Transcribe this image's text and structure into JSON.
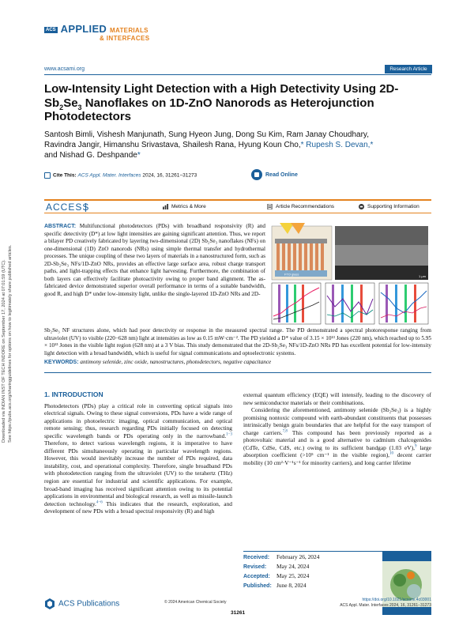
{
  "sidebar": {
    "line1": "Downloaded via INDIAN INST OF TECH INDORE on September 17, 2024 at 07:01:59 (UTC).",
    "line2": "See https://pubs.acs.org/sharingguidelines for options on how to legitimately share published articles."
  },
  "journal": {
    "acs": "ACS",
    "name1": "APPLIED",
    "name1b": "MATERIALS",
    "name2": "& INTERFACES",
    "url": "www.acsami.org",
    "badge": "Research Article"
  },
  "article": {
    "title_a": "Low-Intensity Light Detection with a High Detectivity Using 2D-",
    "title_b1": "Sb",
    "title_sub1": "2",
    "title_b2": "Se",
    "title_sub2": "3",
    "title_b3": " Nanoflakes on 1D-ZnO Nanorods as Heterojunction",
    "title_c": "Photodetectors",
    "authors_1": "Santosh Bimli, Vishesh Manjunath, Sung Hyeon Jung, Dong Su Kim, Ram Janay Choudhary,",
    "authors_2a": "Ravindra Jangir, Himanshu Srivastava, Shailesh Rana, Hyung Koun Cho,",
    "authors_2b": "* Rupesh S. Devan,",
    "authors_3a": "and Nishad G. Deshpande",
    "ast": "*",
    "cite_label": "Cite This:",
    "cite_journal": "ACS Appl. Mater. Interfaces",
    "cite_rest": " 2024, 16, 31261−31273",
    "read_online": "Read Online"
  },
  "access_bar": {
    "access": "ACCESS",
    "metrics": "Metrics & More",
    "recs": "Article Recommendations",
    "supp": "Supporting Information"
  },
  "abstract": {
    "label": "ABSTRACT:",
    "part1": "Multifunctional photodetectors (PDs) with broadband responsivity (R) and specific detectivity (D*) at low light intensities are gaining significant attention. Thus, we report a bilayer PD creatively fabricated by layering two-dimensional (2D) Sb₂Se₃ nanoflakes (NFs) on one-dimensional (1D) ZnO nanorods (NRs) using simple thermal transfer and hydrothermal processes. The unique coupling of these two layers of materials in a nanostructured form, such as 2D-Sb₂Se₃ NFs/1D-ZnO NRs, provides an effective large surface area, robust charge transport paths, and light-trapping effects that enhance light harvesting. Furthermore, the combination of both layers can effectively facilitate photoactivity owing to proper band alignment. The as-fabricated device demonstrated superior overall performance in terms of a suitable bandwidth, good R, and high D* under low-intensity light, unlike the single-layered 1D-ZnO NRs and 2D-",
    "part2": "Sb₂Se₃ NF structures alone, which had poor detectivity or response in the measured spectral range. The PD demonstrated a spectral photoresponse ranging from ultraviolet (UV) to visible (220−628 nm) light at intensities as low as 0.15 mW·cm⁻². The PD yielded a D* value of 3.15 × 10¹³ Jones (220 nm), which reached up to 5.95 × 10¹³ Jones in the visible light region (628 nm) at a 3 V bias. This study demonstrated that the 2D-Sb₂Se₃ NFs/1D-ZnO NRs PD has excellent potential for low-intensity light detection with a broad bandwidth, which is useful for signal communications and optoelectronic systems."
  },
  "keywords": {
    "label": "KEYWORDS:",
    "text": "antimony selenide, zinc oxide, nanostructures, photodetectors, negative capacitance"
  },
  "intro": {
    "heading": "1. INTRODUCTION",
    "col_left": "Photodetectors (PDs) play a critical role in converting optical signals into electrical signals. Owing to these signal conversions, PDs have a wide range of applications in photoelectric imaging, optical communication, and optical remote sensing; thus, research regarding PDs initially focused on detecting specific wavelength bands or PDs operating only in the narrowband.",
    "ref1": "1−3",
    "col_left_b": " Therefore, to detect various wavelength regions, it is imperative to have different PDs simultaneously operating in particular wavelength regions. However, this would inevitably increase the number of PDs required, data instability, cost, and operational complexity. Therefore, single broadband PDs with photodetection ranging from the ultraviolet (UV) to the terahertz (THz) region are essential for industrial and scientific applications. For example, broad-band imaging has received significant attention owing to its potential applications in environmental and biological research, as well as missile-launch detection technology.",
    "ref2": "4−6",
    "col_left_c": " This indicates that the research, exploration, and development of new PDs with a broad spectral responsivity (R) and high",
    "col_right_a": "external quantum efficiency (EQE) will intensify, leading to the discovery of new semiconductor materials or their combinations.",
    "col_right_b": "Considering the aforementioned, antimony selenide (Sb₂Se₃) is a highly promising nontoxic compound with earth-abundant constituents that possesses intrinsically benign grain boundaries that are helpful for the easy transport of charge carriers.",
    "ref3": "7,8",
    "col_right_c": " This compound has been previously reported as a photovoltaic material and is a good alternative to cadmium chalcogenides (CdTe, CdSe, CdS, etc.) owing to its sufficient bandgap (1.03 eV),",
    "ref4": "9",
    "col_right_d": " large absorption coefficient (>10⁵ cm⁻¹ in the visible region),",
    "ref5": "10",
    "col_right_e": " decent carrier mobility (10 cm²·V⁻¹s⁻¹ for minority carriers), and long carrier lifetime"
  },
  "dates": [
    {
      "label": "Received:",
      "value": "February 26, 2024"
    },
    {
      "label": "Revised:",
      "value": "May 24, 2024"
    },
    {
      "label": "Accepted:",
      "value": "May 25, 2024"
    },
    {
      "label": "Published:",
      "value": "June 8, 2024"
    }
  ],
  "footer": {
    "publisher": "ACS Publications",
    "copyright": "© 2024 American Chemical Society",
    "page": "31261",
    "doi": "https://doi.org/10.1021/acsami.4c03001",
    "doi_journal": "ACS Appl. Mater. Interfaces 2024, 16, 31261−31273"
  },
  "toc": {
    "scale": "1 μm",
    "device_label": "FTO glass"
  },
  "colors": {
    "accent": "#1a5f9a",
    "orange": "#e4821f"
  }
}
